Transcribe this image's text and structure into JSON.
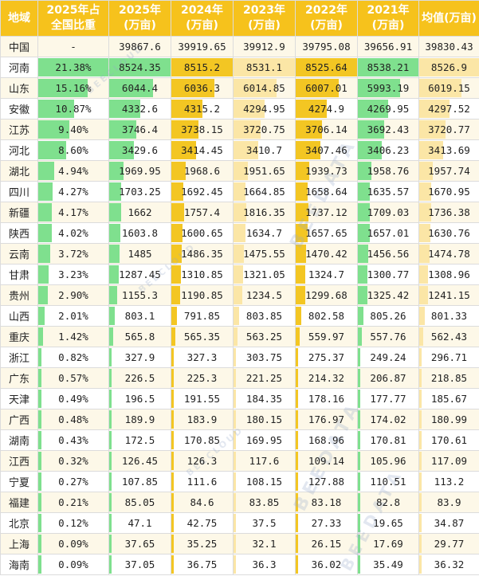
{
  "headers": [
    "地域",
    "2025年占\n全国比重",
    "2025年\n(万亩)",
    "2024年\n(万亩)",
    "2023年\n(万亩)",
    "2022年\n(万亩)",
    "2021年\n(万亩)",
    "均值(万亩)"
  ],
  "watermark": "BEEDATA",
  "watermark_sub": "BEECLOUD",
  "colors": {
    "header": "#f6c21c",
    "green_bar": "#7fe08e",
    "gold_bar": "#f3c623",
    "pale_bar": "#fbe6a6",
    "stripe": "#fdf8e8"
  },
  "rows": [
    {
      "region": "中国",
      "share": "-",
      "y2025": "39867.6",
      "y2024": "39919.65",
      "y2023": "39912.9",
      "y2022": "39795.08",
      "y2021": "39656.91",
      "avg": "39830.43"
    },
    {
      "region": "河南",
      "share": "21.38%",
      "y2025": "8524.35",
      "y2024": "8515.2",
      "y2023": "8531.1",
      "y2022": "8525.64",
      "y2021": "8538.21",
      "avg": "8526.9"
    },
    {
      "region": "山东",
      "share": "15.16%",
      "y2025": "6044.4",
      "y2024": "6036.3",
      "y2023": "6014.85",
      "y2022": "6007.01",
      "y2021": "5993.19",
      "avg": "6019.15"
    },
    {
      "region": "安徽",
      "share": "10.87%",
      "y2025": "4332.6",
      "y2024": "4315.2",
      "y2023": "4294.95",
      "y2022": "4274.9",
      "y2021": "4269.95",
      "avg": "4297.52"
    },
    {
      "region": "江苏",
      "share": "9.40%",
      "y2025": "3746.4",
      "y2024": "3738.15",
      "y2023": "3720.75",
      "y2022": "3706.14",
      "y2021": "3692.43",
      "avg": "3720.77"
    },
    {
      "region": "河北",
      "share": "8.60%",
      "y2025": "3429.6",
      "y2024": "3414.45",
      "y2023": "3410.7",
      "y2022": "3407.46",
      "y2021": "3406.23",
      "avg": "3413.69"
    },
    {
      "region": "湖北",
      "share": "4.94%",
      "y2025": "1969.95",
      "y2024": "1968.6",
      "y2023": "1951.65",
      "y2022": "1939.73",
      "y2021": "1958.76",
      "avg": "1957.74"
    },
    {
      "region": "四川",
      "share": "4.27%",
      "y2025": "1703.25",
      "y2024": "1692.45",
      "y2023": "1664.85",
      "y2022": "1658.64",
      "y2021": "1635.57",
      "avg": "1670.95"
    },
    {
      "region": "新疆",
      "share": "4.17%",
      "y2025": "1662",
      "y2024": "1757.4",
      "y2023": "1816.35",
      "y2022": "1737.12",
      "y2021": "1709.03",
      "avg": "1736.38"
    },
    {
      "region": "陕西",
      "share": "4.02%",
      "y2025": "1603.8",
      "y2024": "1600.65",
      "y2023": "1634.7",
      "y2022": "1657.65",
      "y2021": "1657.01",
      "avg": "1630.76"
    },
    {
      "region": "云南",
      "share": "3.72%",
      "y2025": "1485",
      "y2024": "1486.35",
      "y2023": "1475.55",
      "y2022": "1470.42",
      "y2021": "1456.56",
      "avg": "1474.78"
    },
    {
      "region": "甘肃",
      "share": "3.23%",
      "y2025": "1287.45",
      "y2024": "1310.85",
      "y2023": "1321.05",
      "y2022": "1324.7",
      "y2021": "1300.77",
      "avg": "1308.96"
    },
    {
      "region": "贵州",
      "share": "2.90%",
      "y2025": "1155.3",
      "y2024": "1190.85",
      "y2023": "1234.5",
      "y2022": "1299.68",
      "y2021": "1325.42",
      "avg": "1241.15"
    },
    {
      "region": "山西",
      "share": "2.01%",
      "y2025": "803.1",
      "y2024": "791.85",
      "y2023": "803.85",
      "y2022": "802.58",
      "y2021": "805.26",
      "avg": "801.33"
    },
    {
      "region": "重庆",
      "share": "1.42%",
      "y2025": "565.8",
      "y2024": "565.35",
      "y2023": "563.25",
      "y2022": "559.97",
      "y2021": "557.76",
      "avg": "562.43"
    },
    {
      "region": "浙江",
      "share": "0.82%",
      "y2025": "327.9",
      "y2024": "327.3",
      "y2023": "303.75",
      "y2022": "275.37",
      "y2021": "249.24",
      "avg": "296.71"
    },
    {
      "region": "广东",
      "share": "0.57%",
      "y2025": "226.5",
      "y2024": "225.3",
      "y2023": "221.25",
      "y2022": "214.32",
      "y2021": "206.87",
      "avg": "218.85"
    },
    {
      "region": "天津",
      "share": "0.49%",
      "y2025": "196.5",
      "y2024": "191.55",
      "y2023": "184.35",
      "y2022": "178.16",
      "y2021": "177.77",
      "avg": "185.67"
    },
    {
      "region": "广西",
      "share": "0.48%",
      "y2025": "189.9",
      "y2024": "183.9",
      "y2023": "180.15",
      "y2022": "176.97",
      "y2021": "174.02",
      "avg": "180.99"
    },
    {
      "region": "湖南",
      "share": "0.43%",
      "y2025": "172.5",
      "y2024": "170.85",
      "y2023": "169.95",
      "y2022": "168.96",
      "y2021": "170.81",
      "avg": "170.61"
    },
    {
      "region": "江西",
      "share": "0.32%",
      "y2025": "126.45",
      "y2024": "126.3",
      "y2023": "117.6",
      "y2022": "109.14",
      "y2021": "105.96",
      "avg": "117.09"
    },
    {
      "region": "宁夏",
      "share": "0.27%",
      "y2025": "107.85",
      "y2024": "111.6",
      "y2023": "108.15",
      "y2022": "127.88",
      "y2021": "110.51",
      "avg": "113.2"
    },
    {
      "region": "福建",
      "share": "0.21%",
      "y2025": "85.05",
      "y2024": "84.6",
      "y2023": "83.85",
      "y2022": "83.18",
      "y2021": "82.8",
      "avg": "83.9"
    },
    {
      "region": "北京",
      "share": "0.12%",
      "y2025": "47.1",
      "y2024": "42.75",
      "y2023": "37.5",
      "y2022": "27.33",
      "y2021": "19.65",
      "avg": "34.87"
    },
    {
      "region": "上海",
      "share": "0.09%",
      "y2025": "37.65",
      "y2024": "35.25",
      "y2023": "32.1",
      "y2022": "26.15",
      "y2021": "17.69",
      "avg": "29.77"
    },
    {
      "region": "海南",
      "share": "0.09%",
      "y2025": "37.05",
      "y2024": "36.75",
      "y2023": "36.3",
      "y2022": "36.02",
      "y2021": "35.49",
      "avg": "36.32"
    }
  ]
}
